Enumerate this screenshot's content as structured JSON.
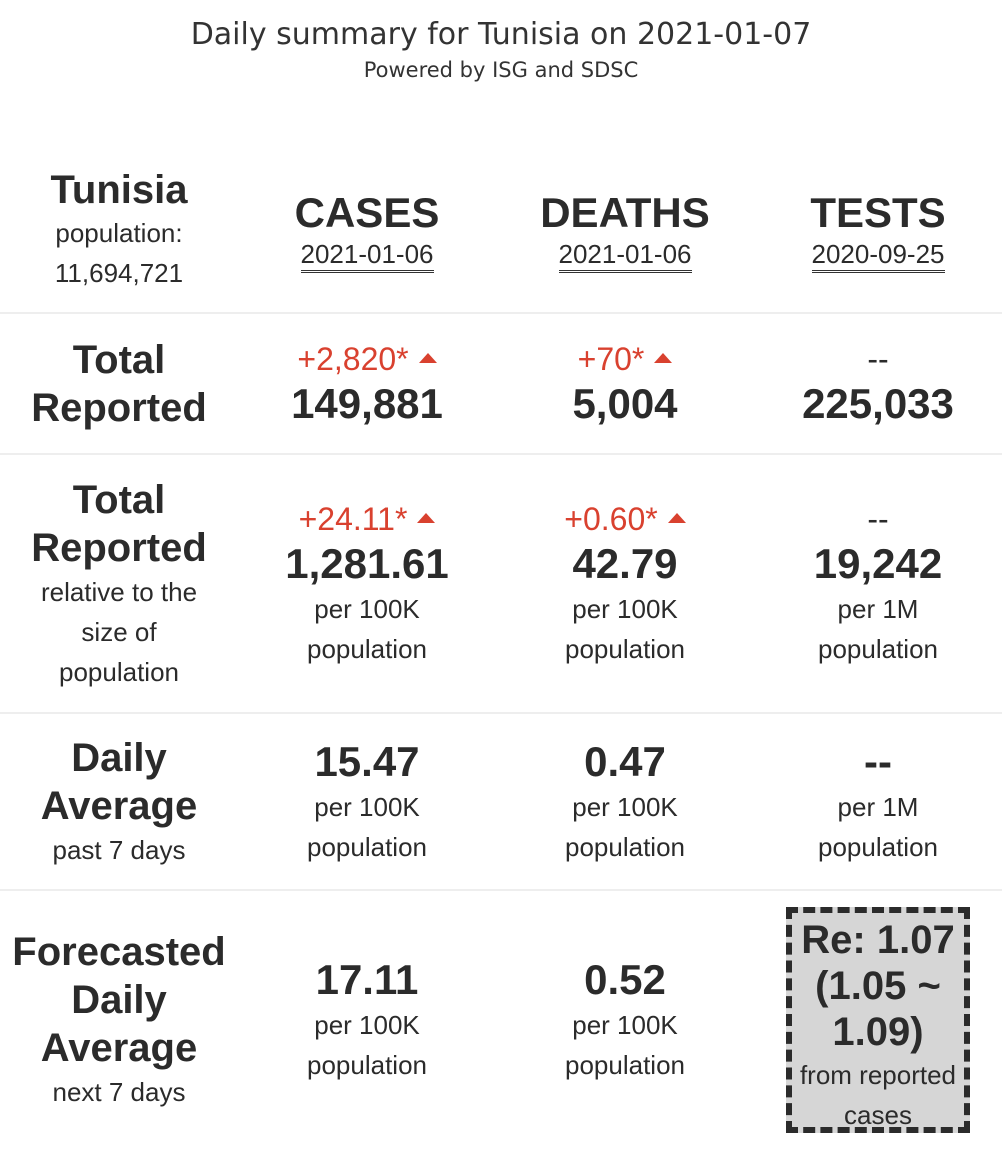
{
  "header": {
    "title": "Daily summary for Tunisia on 2021-01-07",
    "subtitle": "Powered by ISG and SDSC"
  },
  "country": {
    "name": "Tunisia",
    "population_label": "population:",
    "population": "11,694,721"
  },
  "columns": {
    "cases": {
      "label": "CASES",
      "date": "2021-01-06"
    },
    "deaths": {
      "label": "DEATHS",
      "date": "2021-01-06"
    },
    "tests": {
      "label": "TESTS",
      "date": "2020-09-25"
    }
  },
  "rows": {
    "total_reported": {
      "label_line1": "Total",
      "label_line2": "Reported",
      "cases": {
        "delta": "+2,820*",
        "value": "149,881"
      },
      "deaths": {
        "delta": "+70*",
        "value": "5,004"
      },
      "tests": {
        "delta": "--",
        "value": "225,033"
      }
    },
    "relative": {
      "label_line1": "Total",
      "label_line2": "Reported",
      "sub_line1": "relative to the",
      "sub_line2": "size of",
      "sub_line3": "population",
      "cases": {
        "delta": "+24.11*",
        "value": "1,281.61",
        "unit1": "per 100K",
        "unit2": "population"
      },
      "deaths": {
        "delta": "+0.60*",
        "value": "42.79",
        "unit1": "per 100K",
        "unit2": "population"
      },
      "tests": {
        "delta": "--",
        "value": "19,242",
        "unit1": "per 1M",
        "unit2": "population"
      }
    },
    "daily_average": {
      "label_line1": "Daily",
      "label_line2": "Average",
      "sub": "past 7 days",
      "cases": {
        "value": "15.47",
        "unit1": "per 100K",
        "unit2": "population"
      },
      "deaths": {
        "value": "0.47",
        "unit1": "per 100K",
        "unit2": "population"
      },
      "tests": {
        "value": "--",
        "unit1": "per 1M",
        "unit2": "population"
      }
    },
    "forecast": {
      "label_line1": "Forecasted",
      "label_line2": "Daily",
      "label_line3": "Average",
      "sub": "next 7 days",
      "cases": {
        "value": "17.11",
        "unit1": "per 100K",
        "unit2": "population"
      },
      "deaths": {
        "value": "0.52",
        "unit1": "per 100K",
        "unit2": "population"
      },
      "re": {
        "line1": "Re: 1.07",
        "line2": "(1.05 ~",
        "line3": "1.09)",
        "note1": "from reported",
        "note2": "cases"
      }
    }
  },
  "colors": {
    "increase": "#d9412f",
    "text": "#2b2b2b",
    "re_box_bg": "#d6d6d6",
    "separator": "#eeeeee"
  }
}
